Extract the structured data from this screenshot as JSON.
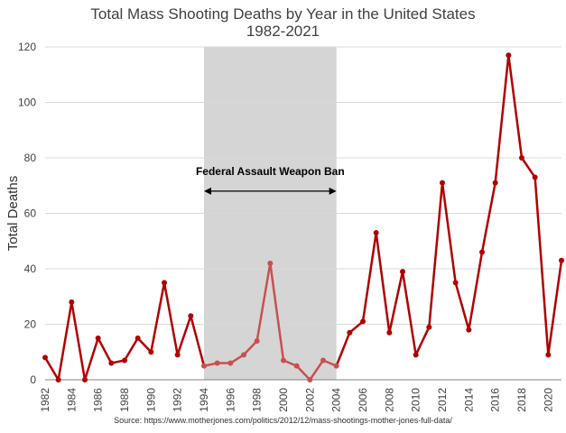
{
  "chart_data": {
    "type": "line",
    "title": "Total Mass Shooting Deaths by Year in the United States",
    "subtitle": "1982-2021",
    "xlabel": "",
    "ylabel": "Total Deaths",
    "ylim": [
      0,
      120
    ],
    "yticks": [
      0,
      20,
      40,
      60,
      80,
      100,
      120
    ],
    "xlim": [
      1982,
      2021
    ],
    "xticks": [
      1982,
      1984,
      1986,
      1988,
      1990,
      1992,
      1994,
      1996,
      1998,
      2000,
      2002,
      2004,
      2006,
      2008,
      2010,
      2012,
      2014,
      2016,
      2018,
      2020
    ],
    "grid": "horizontal",
    "legend": "none",
    "series": [
      {
        "x": [
          1982,
          1983,
          1984,
          1985,
          1986,
          1987,
          1988,
          1989,
          1990,
          1991,
          1992,
          1993,
          1994,
          1995,
          1996,
          1997,
          1998,
          1999,
          2000,
          2001,
          2002,
          2003,
          2004,
          2005,
          2006,
          2007,
          2008,
          2009,
          2010,
          2011,
          2012,
          2013,
          2014,
          2015,
          2016,
          2017,
          2018,
          2019,
          2020,
          2021
        ],
        "values": [
          8,
          0,
          28,
          0,
          15,
          6,
          7,
          15,
          10,
          35,
          9,
          23,
          5,
          6,
          6,
          9,
          14,
          42,
          7,
          5,
          0,
          7,
          5,
          17,
          21,
          53,
          17,
          39,
          9,
          19,
          71,
          35,
          18,
          46,
          71,
          117,
          80,
          73,
          9,
          43
        ],
        "color": "#b00000",
        "shaded_color": "#c85050"
      }
    ],
    "shaded_region": {
      "x_start": 1994,
      "x_end": 2004,
      "color": "#d5d5d5"
    },
    "annotations": [
      {
        "text": "Federal Assault Weapon Ban",
        "x_start": 1994,
        "x_end": 2004,
        "y": 68,
        "arrow": "double"
      }
    ],
    "source": "Source: https://www.motherjones.com/politics/2012/12/mass-shootings-mother-jones-full-data/"
  }
}
